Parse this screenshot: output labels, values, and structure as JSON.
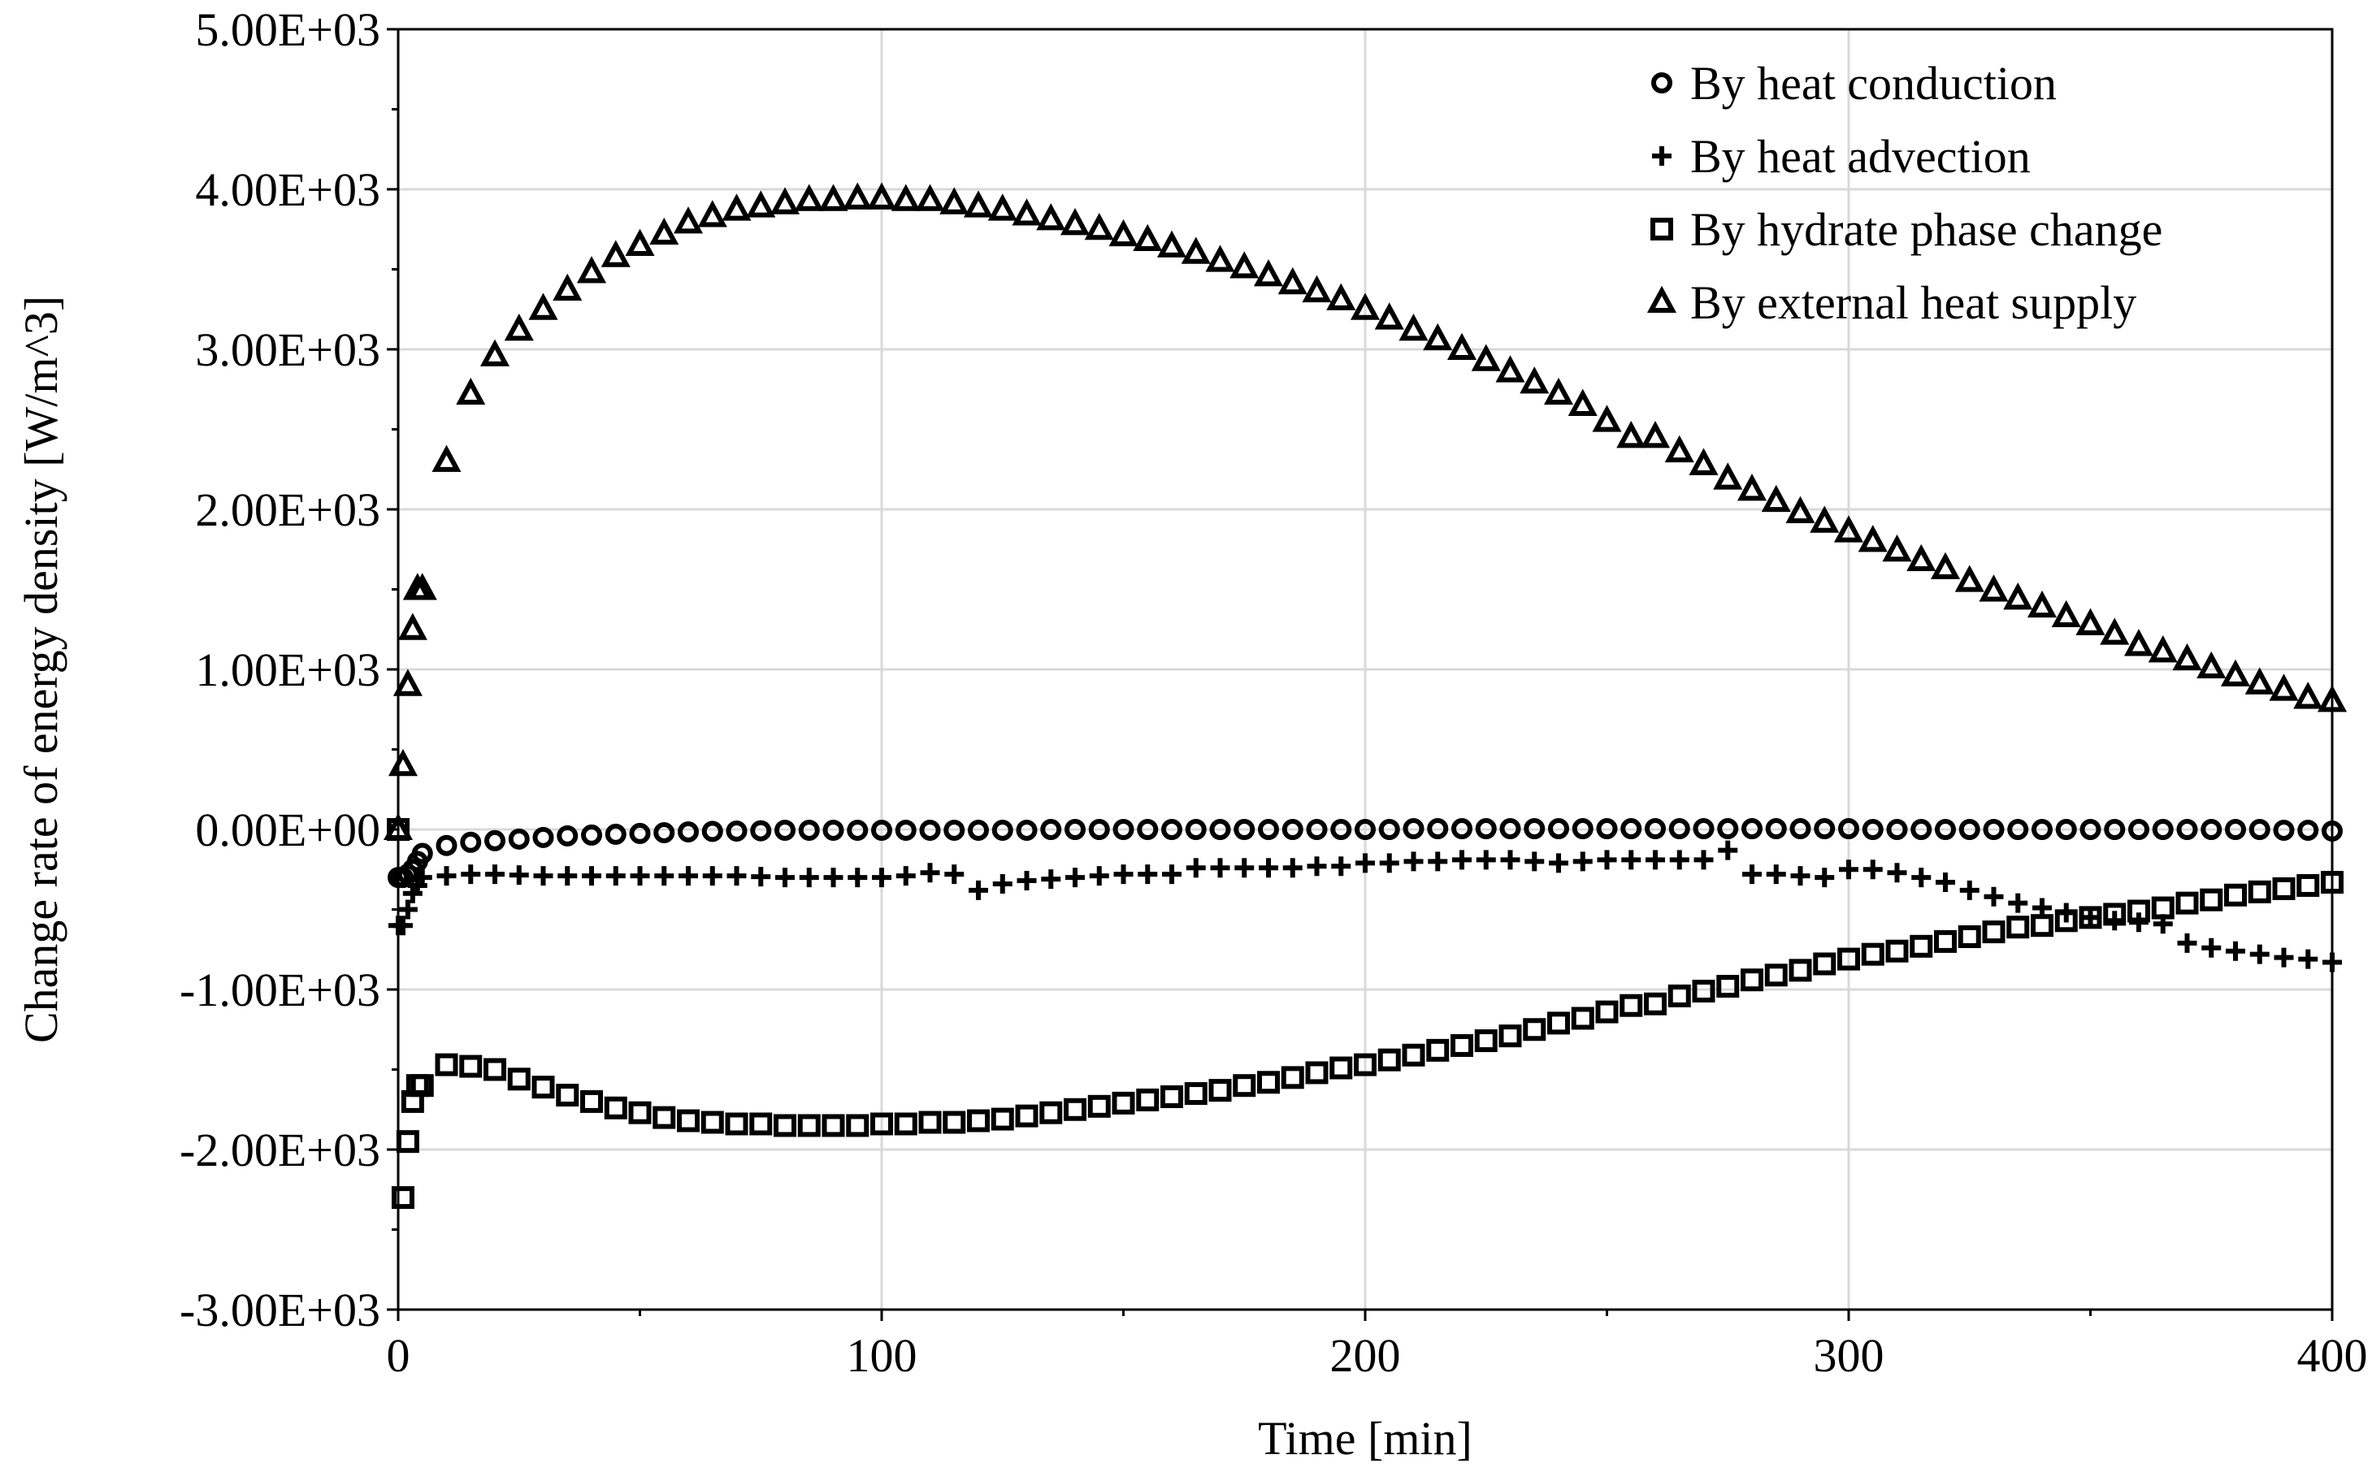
{
  "chart_data": {
    "type": "scatter",
    "title": "",
    "xlabel": "Time [min]",
    "ylabel": "Change rate of energy density  [W/m^3]",
    "xlim": [
      0,
      400
    ],
    "ylim": [
      -3000,
      5000
    ],
    "x_ticks": [
      "0",
      "100",
      "200",
      "300",
      "400"
    ],
    "y_ticks": [
      "5.00E+03",
      "4.00E+03",
      "3.00E+03",
      "2.00E+03",
      "1.00E+03",
      "0.00E+00",
      "-1.00E+03",
      "-2.00E+03",
      "-3.00E+03"
    ],
    "grid": true,
    "legend_position": "top-right",
    "series": [
      {
        "name": "By heat conduction",
        "marker": "circle",
        "x": [
          0,
          1,
          2,
          3,
          4,
          5,
          10,
          15,
          20,
          25,
          30,
          35,
          40,
          45,
          50,
          55,
          60,
          65,
          70,
          75,
          80,
          85,
          90,
          95,
          100,
          105,
          110,
          115,
          120,
          125,
          130,
          135,
          140,
          145,
          150,
          155,
          160,
          165,
          170,
          175,
          180,
          185,
          190,
          195,
          200,
          205,
          210,
          215,
          220,
          225,
          230,
          235,
          240,
          245,
          250,
          255,
          260,
          265,
          270,
          275,
          280,
          285,
          290,
          295,
          300,
          305,
          310,
          315,
          320,
          325,
          330,
          335,
          340,
          345,
          350,
          355,
          360,
          365,
          370,
          375,
          380,
          385,
          390,
          395,
          400
        ],
        "y": [
          -300,
          -300,
          -280,
          -250,
          -200,
          -150,
          -100,
          -80,
          -70,
          -60,
          -50,
          -40,
          -35,
          -30,
          -25,
          -20,
          -15,
          -12,
          -10,
          -8,
          -5,
          -5,
          -5,
          -5,
          -5,
          -5,
          -5,
          -5,
          -5,
          -5,
          -5,
          0,
          0,
          0,
          0,
          0,
          0,
          0,
          0,
          0,
          0,
          0,
          0,
          0,
          0,
          0,
          5,
          5,
          5,
          5,
          5,
          5,
          5,
          5,
          5,
          5,
          5,
          5,
          5,
          5,
          5,
          5,
          5,
          5,
          5,
          0,
          0,
          0,
          0,
          0,
          0,
          0,
          0,
          0,
          0,
          0,
          0,
          0,
          0,
          0,
          0,
          0,
          -5,
          -5,
          -10
        ]
      },
      {
        "name": "By heat advection",
        "marker": "plus",
        "x": [
          0,
          1,
          2,
          3,
          4,
          5,
          10,
          15,
          20,
          25,
          30,
          35,
          40,
          45,
          50,
          55,
          60,
          65,
          70,
          75,
          80,
          85,
          90,
          95,
          100,
          105,
          110,
          115,
          120,
          125,
          130,
          135,
          140,
          145,
          150,
          155,
          160,
          165,
          170,
          175,
          180,
          185,
          190,
          195,
          200,
          205,
          210,
          215,
          220,
          225,
          230,
          235,
          240,
          245,
          250,
          255,
          260,
          265,
          270,
          275,
          280,
          285,
          290,
          295,
          300,
          305,
          310,
          315,
          320,
          325,
          330,
          335,
          340,
          345,
          350,
          355,
          360,
          365,
          370,
          375,
          380,
          385,
          390,
          395,
          400
        ],
        "y": [
          -600,
          -600,
          -500,
          -400,
          -350,
          -300,
          -290,
          -280,
          -280,
          -285,
          -290,
          -290,
          -290,
          -290,
          -290,
          -290,
          -290,
          -290,
          -290,
          -295,
          -300,
          -300,
          -300,
          -300,
          -300,
          -290,
          -270,
          -280,
          -380,
          -340,
          -320,
          -310,
          -300,
          -290,
          -280,
          -280,
          -280,
          -240,
          -240,
          -240,
          -240,
          -240,
          -230,
          -230,
          -210,
          -210,
          -200,
          -200,
          -190,
          -190,
          -190,
          -200,
          -210,
          -200,
          -190,
          -190,
          -190,
          -190,
          -190,
          -130,
          -280,
          -280,
          -290,
          -300,
          -250,
          -250,
          -270,
          -300,
          -330,
          -380,
          -420,
          -460,
          -490,
          -520,
          -550,
          -570,
          -580,
          -590,
          -710,
          -740,
          -760,
          -780,
          -800,
          -810,
          -830
        ]
      },
      {
        "name": "By hydrate phase change",
        "marker": "square",
        "x": [
          0,
          1,
          2,
          3,
          4,
          5,
          10,
          15,
          20,
          25,
          30,
          35,
          40,
          45,
          50,
          55,
          60,
          65,
          70,
          75,
          80,
          85,
          90,
          95,
          100,
          105,
          110,
          115,
          120,
          125,
          130,
          135,
          140,
          145,
          150,
          155,
          160,
          165,
          170,
          175,
          180,
          185,
          190,
          195,
          200,
          205,
          210,
          215,
          220,
          225,
          230,
          235,
          240,
          245,
          250,
          255,
          260,
          265,
          270,
          275,
          280,
          285,
          290,
          295,
          300,
          305,
          310,
          315,
          320,
          325,
          330,
          335,
          340,
          345,
          350,
          355,
          360,
          365,
          370,
          375,
          380,
          385,
          390,
          395,
          400
        ],
        "y": [
          0,
          -2300,
          -1950,
          -1700,
          -1600,
          -1600,
          -1470,
          -1480,
          -1500,
          -1560,
          -1610,
          -1660,
          -1700,
          -1740,
          -1770,
          -1800,
          -1820,
          -1830,
          -1840,
          -1840,
          -1850,
          -1850,
          -1850,
          -1850,
          -1840,
          -1840,
          -1830,
          -1830,
          -1820,
          -1810,
          -1790,
          -1770,
          -1750,
          -1730,
          -1710,
          -1690,
          -1670,
          -1650,
          -1630,
          -1600,
          -1580,
          -1550,
          -1520,
          -1490,
          -1470,
          -1440,
          -1410,
          -1380,
          -1350,
          -1320,
          -1290,
          -1250,
          -1210,
          -1180,
          -1140,
          -1100,
          -1090,
          -1040,
          -1010,
          -980,
          -940,
          -910,
          -880,
          -840,
          -810,
          -780,
          -760,
          -730,
          -700,
          -670,
          -640,
          -610,
          -600,
          -570,
          -550,
          -530,
          -510,
          -490,
          -460,
          -440,
          -410,
          -390,
          -370,
          -350,
          -330
        ]
      },
      {
        "name": "By external heat supply",
        "marker": "triangle",
        "x": [
          0,
          1,
          2,
          3,
          4,
          5,
          10,
          15,
          20,
          25,
          30,
          35,
          40,
          45,
          50,
          55,
          60,
          65,
          70,
          75,
          80,
          85,
          90,
          95,
          100,
          105,
          110,
          115,
          120,
          125,
          130,
          135,
          140,
          145,
          150,
          155,
          160,
          165,
          170,
          175,
          180,
          185,
          190,
          195,
          200,
          205,
          210,
          215,
          220,
          225,
          230,
          235,
          240,
          245,
          250,
          255,
          260,
          265,
          270,
          275,
          280,
          285,
          290,
          295,
          300,
          305,
          310,
          315,
          320,
          325,
          330,
          335,
          340,
          345,
          350,
          355,
          360,
          365,
          370,
          375,
          380,
          385,
          390,
          395,
          400
        ],
        "y": [
          0,
          400,
          900,
          1250,
          1500,
          1500,
          2300,
          2720,
          2960,
          3120,
          3250,
          3370,
          3480,
          3580,
          3650,
          3720,
          3790,
          3830,
          3870,
          3890,
          3910,
          3930,
          3930,
          3940,
          3940,
          3930,
          3930,
          3910,
          3890,
          3870,
          3840,
          3810,
          3780,
          3750,
          3710,
          3680,
          3640,
          3600,
          3550,
          3510,
          3460,
          3410,
          3360,
          3310,
          3250,
          3190,
          3120,
          3060,
          3000,
          2930,
          2860,
          2790,
          2720,
          2650,
          2550,
          2450,
          2450,
          2360,
          2280,
          2190,
          2120,
          2050,
          1980,
          1920,
          1860,
          1800,
          1740,
          1680,
          1630,
          1550,
          1490,
          1440,
          1390,
          1330,
          1280,
          1220,
          1150,
          1110,
          1060,
          1010,
          960,
          910,
          870,
          820,
          800
        ]
      }
    ]
  }
}
